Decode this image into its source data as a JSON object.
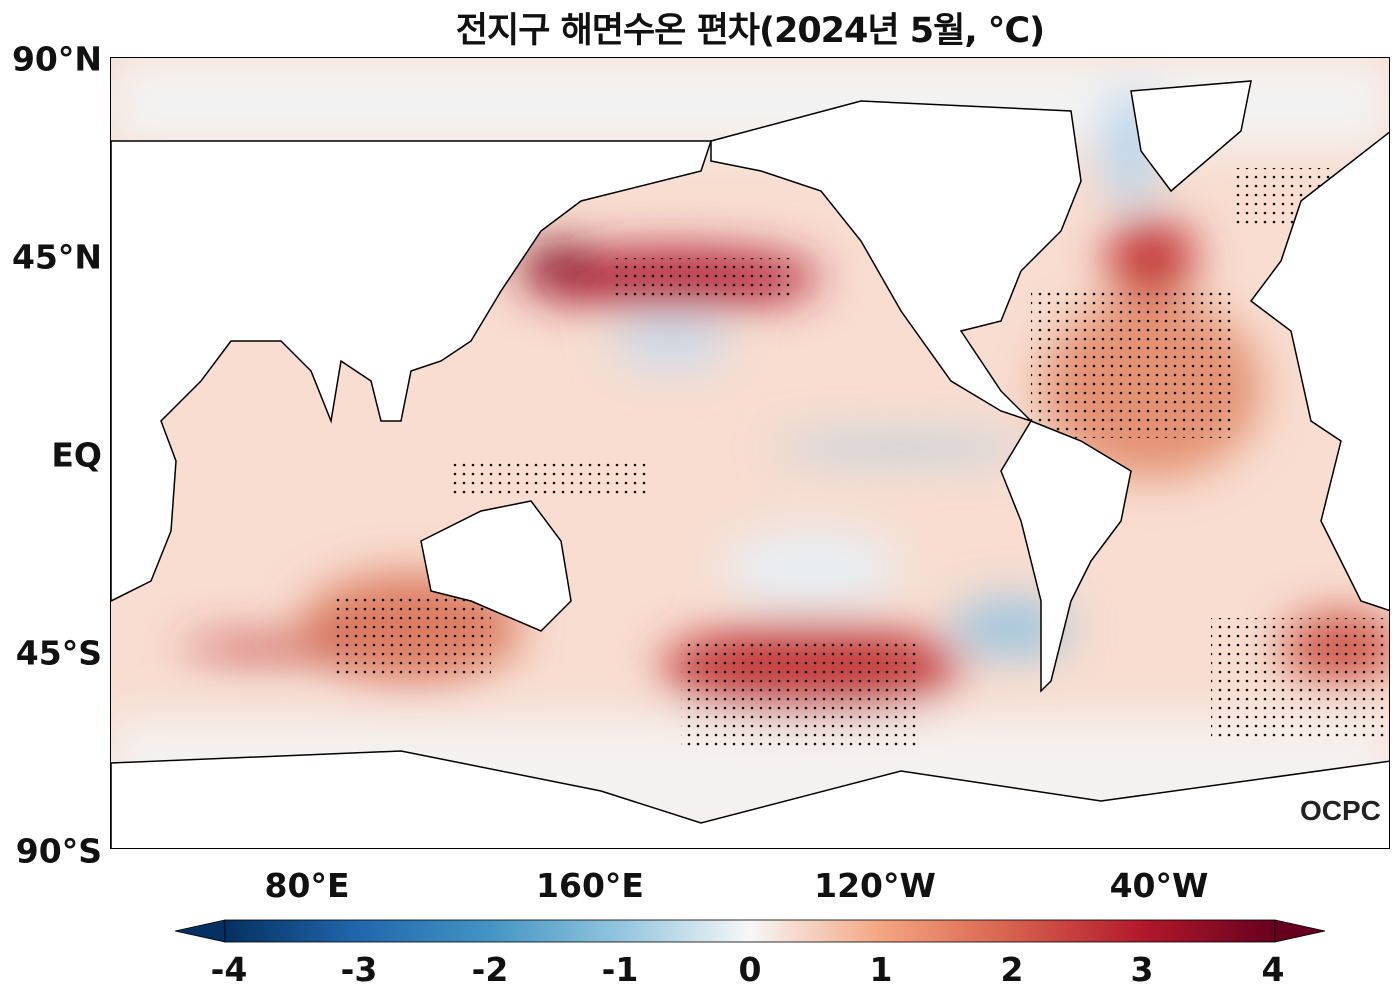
{
  "title": "전지구 해면수온 편차(2024년 5월, ℃)",
  "lat_labels": [
    "90°N",
    "45°N",
    "EQ",
    "45°S",
    "90°S"
  ],
  "lon_labels": [
    "80°E",
    "160°E",
    "120°W",
    "40°W"
  ],
  "colorbar": {
    "ticks": [
      "-4",
      "-3",
      "-2",
      "-1",
      "0",
      "1",
      "2",
      "3",
      "4"
    ],
    "range": [
      -4,
      4
    ],
    "colors": [
      "#053061",
      "#2166ac",
      "#4393c3",
      "#92c5de",
      "#f7f7f7",
      "#f4a582",
      "#d6604d",
      "#b2182b",
      "#67001f"
    ]
  },
  "logo": "OCPC"
}
